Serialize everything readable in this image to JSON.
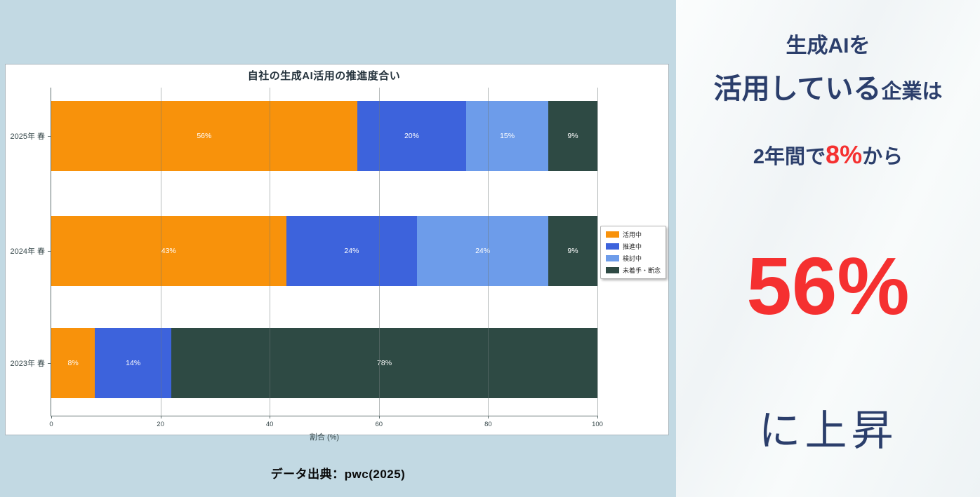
{
  "chart": {
    "title": "自社の生成AI活用の推進度合い",
    "xlabel": "割合 (%)",
    "x_ticks": [
      "0",
      "20",
      "40",
      "60",
      "80",
      "100"
    ],
    "legend": [
      {
        "label": "活用中",
        "color": "#F8920B"
      },
      {
        "label": "推進中",
        "color": "#3D63DC"
      },
      {
        "label": "検討中",
        "color": "#6D9CEA"
      },
      {
        "label": "未着手・断念",
        "color": "#2E4A44"
      }
    ],
    "rows": [
      {
        "category": "2025年 春",
        "segments": [
          {
            "legend": 0,
            "pct": 56,
            "label": "56%"
          },
          {
            "legend": 1,
            "pct": 20,
            "label": "20%"
          },
          {
            "legend": 2,
            "pct": 15,
            "label": "15%"
          },
          {
            "legend": 3,
            "pct": 9,
            "label": "9%"
          }
        ]
      },
      {
        "category": "2024年 春",
        "segments": [
          {
            "legend": 0,
            "pct": 43,
            "label": "43%"
          },
          {
            "legend": 1,
            "pct": 24,
            "label": "24%"
          },
          {
            "legend": 2,
            "pct": 24,
            "label": "24%"
          },
          {
            "legend": 3,
            "pct": 9,
            "label": "9%"
          }
        ]
      },
      {
        "category": "2023年 春",
        "segments": [
          {
            "legend": 0,
            "pct": 8,
            "label": "8%"
          },
          {
            "legend": 1,
            "pct": 14,
            "label": "14%"
          },
          {
            "legend": 3,
            "pct": 78,
            "label": "78%"
          }
        ]
      }
    ]
  },
  "chart_data": {
    "type": "bar",
    "orientation": "horizontal",
    "stacked": true,
    "title": "自社の生成AI活用の推進度合い",
    "categories": [
      "2025年 春",
      "2024年 春",
      "2023年 春"
    ],
    "series": [
      {
        "name": "活用中",
        "values": [
          56,
          43,
          8
        ],
        "color": "#F8920B"
      },
      {
        "name": "推進中",
        "values": [
          20,
          24,
          14
        ],
        "color": "#3D63DC"
      },
      {
        "name": "検討中",
        "values": [
          15,
          24,
          0
        ],
        "color": "#6D9CEA"
      },
      {
        "name": "未着手・断念",
        "values": [
          9,
          9,
          78
        ],
        "color": "#2E4A44"
      }
    ],
    "xlabel": "割合 (%)",
    "xlim": [
      0,
      100
    ],
    "grid": true,
    "legend_position": "right"
  },
  "source": {
    "text": "データ出典：pwc(2025)"
  },
  "callout": {
    "line1": "生成AIを",
    "line2_big": "活用している",
    "line2_small": "企業は",
    "line3_pre": "2年間で",
    "line3_red": "8%",
    "line3_post": "から",
    "big_number": "56%",
    "line5": "に上昇",
    "navy": "#2B3E6B",
    "red": "#F53030"
  },
  "colors": {
    "page_bg": "#C2D9E3",
    "panel_bg": "#F5F8F9",
    "chart_bg": "#FFFFFF"
  }
}
